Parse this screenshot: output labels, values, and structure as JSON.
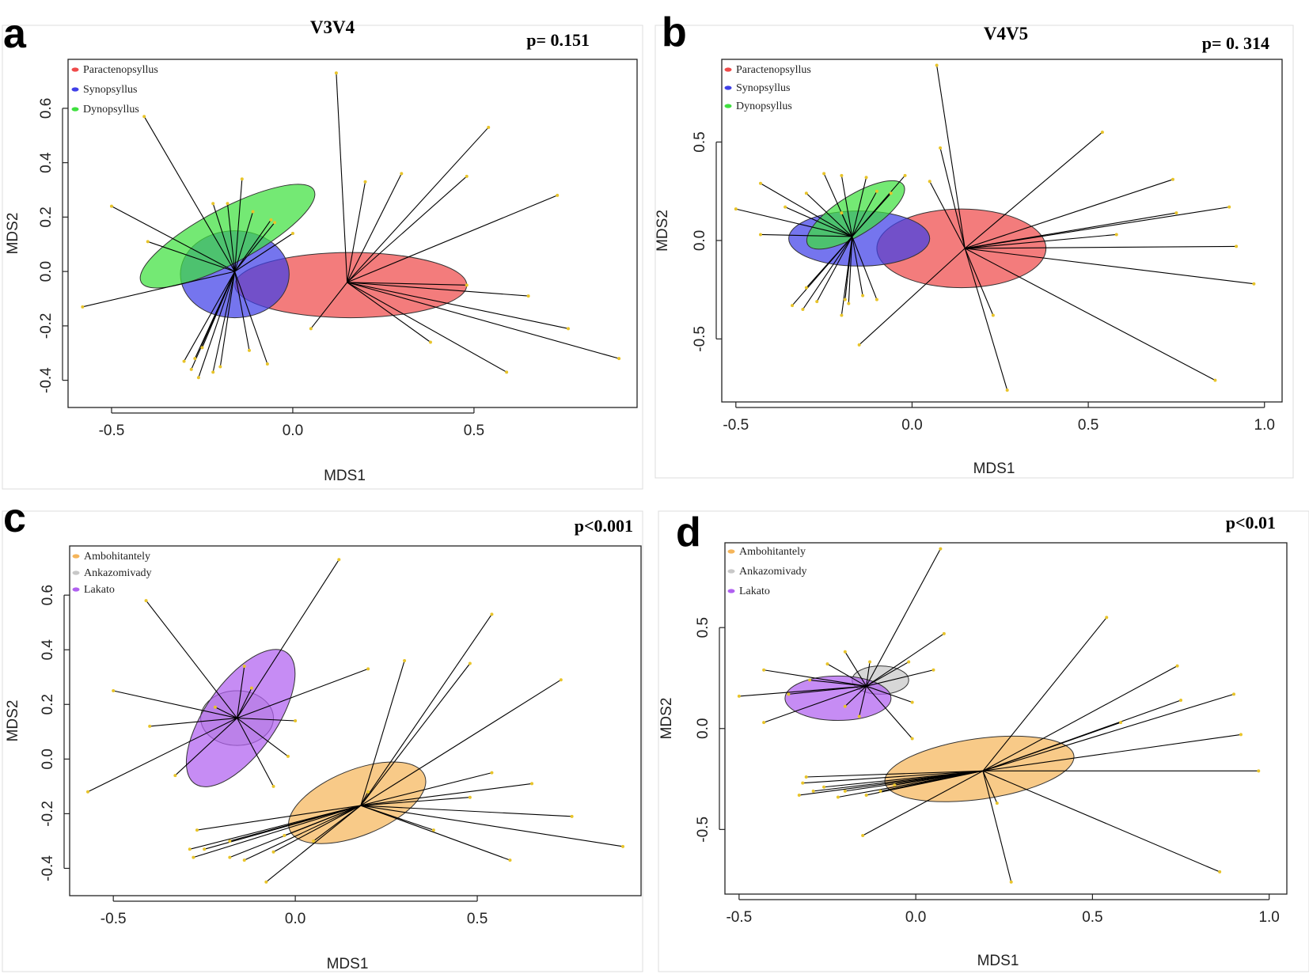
{
  "chart_data": [
    {
      "panel": "a",
      "type": "scatter",
      "title": "V3V4",
      "p_value": "p= 0.151",
      "xlabel": "MDS1",
      "ylabel": "MDS2",
      "xlim": [
        -0.62,
        0.95
      ],
      "ylim": [
        -0.5,
        0.78
      ],
      "xticks": [
        -0.5,
        0.0,
        0.5
      ],
      "xtick_labels": [
        "-0.5",
        "0.0",
        "0.5"
      ],
      "yticks": [
        -0.4,
        -0.2,
        0.0,
        0.2,
        0.4,
        0.6
      ],
      "ytick_labels": [
        "-0.4",
        "-0.2",
        "0.0",
        "0.2",
        "0.4",
        "0.6"
      ],
      "legend": [
        "Paractenopsyllus",
        "Synopsyllus",
        "Dynopsyllus"
      ],
      "groups": [
        {
          "name": "Paractenopsyllus",
          "color": "#ef4a4a",
          "centroid": [
            0.15,
            -0.04
          ],
          "ellipse": {
            "cx": 0.16,
            "cy": -0.05,
            "rx": 0.32,
            "ry": 0.12,
            "angle": 0
          },
          "points": [
            [
              0.2,
              0.33
            ],
            [
              0.3,
              0.36
            ],
            [
              0.48,
              0.35
            ],
            [
              0.54,
              0.53
            ],
            [
              0.73,
              0.28
            ],
            [
              0.48,
              -0.05
            ],
            [
              0.65,
              -0.09
            ],
            [
              0.76,
              -0.21
            ],
            [
              0.9,
              -0.32
            ],
            [
              0.59,
              -0.37
            ],
            [
              0.38,
              -0.26
            ],
            [
              0.05,
              -0.21
            ],
            [
              0.12,
              0.73
            ]
          ]
        },
        {
          "name": "Synopsyllus",
          "color": "#4040e8",
          "centroid": [
            -0.16,
            0.0
          ],
          "ellipse": {
            "cx": -0.16,
            "cy": -0.01,
            "rx": 0.15,
            "ry": 0.16,
            "angle": 0
          },
          "points": [
            [
              -0.58,
              -0.13
            ],
            [
              -0.27,
              -0.32
            ],
            [
              -0.22,
              -0.37
            ],
            [
              -0.12,
              -0.29
            ],
            [
              -0.07,
              -0.34
            ],
            [
              -0.14,
              0.34
            ],
            [
              -0.18,
              0.25
            ],
            [
              -0.26,
              -0.39
            ],
            [
              -0.11,
              0.22
            ],
            [
              -0.05,
              0.18
            ]
          ]
        },
        {
          "name": "Dynopsyllus",
          "color": "#3fe03f",
          "centroid": [
            -0.16,
            0.0
          ],
          "ellipse": {
            "cx": -0.18,
            "cy": 0.13,
            "rx": 0.27,
            "ry": 0.1,
            "angle": -28
          },
          "points": [
            [
              -0.5,
              0.24
            ],
            [
              -0.41,
              0.57
            ],
            [
              -0.4,
              0.11
            ],
            [
              -0.22,
              0.25
            ],
            [
              -0.28,
              -0.36
            ],
            [
              -0.25,
              -0.28
            ],
            [
              -0.2,
              -0.35
            ],
            [
              -0.06,
              0.19
            ],
            [
              -0.0,
              0.14
            ],
            [
              -0.3,
              -0.33
            ]
          ]
        }
      ]
    },
    {
      "panel": "b",
      "type": "scatter",
      "title": "V4V5",
      "p_value": "p= 0. 314",
      "xlabel": "MDS1",
      "ylabel": "MDS2",
      "xlim": [
        -0.54,
        1.05
      ],
      "ylim": [
        -0.82,
        0.92
      ],
      "xticks": [
        -0.5,
        0.0,
        0.5,
        1.0
      ],
      "xtick_labels": [
        "-0.5",
        "0.0",
        "0.5",
        "1.0"
      ],
      "yticks": [
        -0.5,
        0.0,
        0.5
      ],
      "ytick_labels": [
        "-0.5",
        "0.0",
        "0.5"
      ],
      "legend": [
        "Paractenopsyllus",
        "Synopsyllus",
        "Dynopsyllus"
      ],
      "groups": [
        {
          "name": "Paractenopsyllus",
          "color": "#ef4a4a",
          "centroid": [
            0.15,
            -0.04
          ],
          "ellipse": {
            "cx": 0.14,
            "cy": -0.04,
            "rx": 0.24,
            "ry": 0.2,
            "angle": 0
          },
          "points": [
            [
              0.07,
              0.89
            ],
            [
              0.54,
              0.55
            ],
            [
              0.74,
              0.31
            ],
            [
              0.75,
              0.14
            ],
            [
              0.9,
              0.17
            ],
            [
              0.92,
              -0.03
            ],
            [
              0.97,
              -0.22
            ],
            [
              0.86,
              -0.71
            ],
            [
              0.27,
              -0.76
            ],
            [
              0.23,
              -0.38
            ],
            [
              0.58,
              0.03
            ],
            [
              0.05,
              0.3
            ],
            [
              0.08,
              0.47
            ],
            [
              -0.15,
              -0.53
            ]
          ]
        },
        {
          "name": "Synopsyllus",
          "color": "#4040e8",
          "centroid": [
            -0.17,
            0.02
          ],
          "ellipse": {
            "cx": -0.15,
            "cy": 0.01,
            "rx": 0.2,
            "ry": 0.14,
            "angle": 0
          },
          "points": [
            [
              -0.5,
              0.16
            ],
            [
              -0.43,
              0.03
            ],
            [
              -0.3,
              -0.24
            ],
            [
              -0.31,
              -0.35
            ],
            [
              -0.27,
              -0.31
            ],
            [
              -0.19,
              -0.3
            ],
            [
              -0.14,
              -0.28
            ],
            [
              -0.1,
              -0.3
            ],
            [
              -0.34,
              -0.33
            ],
            [
              -0.2,
              -0.38
            ],
            [
              -0.18,
              -0.32
            ]
          ]
        },
        {
          "name": "Dynopsyllus",
          "color": "#3fe03f",
          "centroid": [
            -0.17,
            0.02
          ],
          "ellipse": {
            "cx": -0.16,
            "cy": 0.13,
            "rx": 0.16,
            "ry": 0.1,
            "angle": -32
          },
          "points": [
            [
              -0.43,
              0.29
            ],
            [
              -0.36,
              0.17
            ],
            [
              -0.3,
              0.24
            ],
            [
              -0.2,
              0.33
            ],
            [
              -0.25,
              0.34
            ],
            [
              -0.13,
              0.32
            ],
            [
              -0.06,
              0.24
            ],
            [
              -0.02,
              0.33
            ],
            [
              -0.1,
              0.25
            ],
            [
              -0.2,
              0.14
            ]
          ]
        }
      ]
    },
    {
      "panel": "c",
      "type": "scatter",
      "title": "",
      "p_value": "p<0.001",
      "xlabel": "MDS1",
      "ylabel": "MDS2",
      "xlim": [
        -0.62,
        0.95
      ],
      "ylim": [
        -0.5,
        0.78
      ],
      "xticks": [
        -0.5,
        0.0,
        0.5
      ],
      "xtick_labels": [
        "-0.5",
        "0.0",
        "0.5"
      ],
      "yticks": [
        -0.4,
        -0.2,
        0.0,
        0.2,
        0.4,
        0.6
      ],
      "ytick_labels": [
        "-0.4",
        "-0.2",
        "0.0",
        "0.2",
        "0.4",
        "0.6"
      ],
      "legend": [
        "Ambohitantely",
        "Ankazomivady",
        "Lakato"
      ],
      "groups": [
        {
          "name": "Ambohitantely",
          "color": "#f5b55a",
          "centroid": [
            0.18,
            -0.17
          ],
          "ellipse": {
            "cx": 0.17,
            "cy": -0.16,
            "rx": 0.2,
            "ry": 0.12,
            "angle": -22
          },
          "points": [
            [
              0.3,
              0.36
            ],
            [
              0.48,
              0.35
            ],
            [
              0.54,
              0.53
            ],
            [
              0.73,
              0.29
            ],
            [
              0.54,
              -0.05
            ],
            [
              0.65,
              -0.09
            ],
            [
              0.76,
              -0.21
            ],
            [
              0.9,
              -0.32
            ],
            [
              0.59,
              -0.37
            ],
            [
              0.38,
              -0.26
            ],
            [
              0.48,
              -0.14
            ],
            [
              0.2,
              -0.12
            ],
            [
              -0.08,
              -0.45
            ],
            [
              -0.18,
              -0.3
            ],
            [
              -0.27,
              -0.26
            ],
            [
              -0.28,
              -0.36
            ],
            [
              -0.25,
              -0.33
            ],
            [
              -0.14,
              -0.37
            ],
            [
              -0.06,
              -0.34
            ],
            [
              -0.29,
              -0.33
            ],
            [
              -0.18,
              -0.36
            ],
            [
              -0.03,
              -0.28
            ],
            [
              0.05,
              -0.3
            ]
          ]
        },
        {
          "name": "Ankazomivady",
          "color": "#c8c8c8",
          "centroid": [
            -0.16,
            0.15
          ],
          "ellipse": {
            "cx": -0.16,
            "cy": 0.15,
            "rx": 0.1,
            "ry": 0.1,
            "angle": 0
          },
          "points": []
        },
        {
          "name": "Lakato",
          "color": "#b060f0",
          "centroid": [
            -0.16,
            0.15
          ],
          "ellipse": {
            "cx": -0.15,
            "cy": 0.15,
            "rx": 0.22,
            "ry": 0.13,
            "angle": -55
          },
          "points": [
            [
              -0.57,
              -0.12
            ],
            [
              -0.5,
              0.25
            ],
            [
              -0.41,
              0.58
            ],
            [
              -0.4,
              0.12
            ],
            [
              -0.33,
              -0.06
            ],
            [
              -0.22,
              0.19
            ],
            [
              -0.14,
              0.34
            ],
            [
              -0.12,
              0.26
            ],
            [
              -0.0,
              0.14
            ],
            [
              -0.02,
              0.01
            ],
            [
              -0.06,
              -0.1
            ],
            [
              0.2,
              0.33
            ],
            [
              0.12,
              0.73
            ]
          ]
        }
      ]
    },
    {
      "panel": "d",
      "type": "scatter",
      "title": "",
      "p_value": "p<0.01",
      "xlabel": "MDS1",
      "ylabel": "MDS2",
      "xlim": [
        -0.54,
        1.05
      ],
      "ylim": [
        -0.82,
        0.92
      ],
      "xticks": [
        -0.5,
        0.0,
        0.5,
        1.0
      ],
      "xtick_labels": [
        "-0.5",
        "0.0",
        "0.5",
        "1.0"
      ],
      "yticks": [
        -0.5,
        0.0,
        0.5
      ],
      "ytick_labels": [
        "-0.5",
        "0.0",
        "0.5"
      ],
      "legend": [
        "Ambohitantely",
        "Ankazomivady",
        "Lakato"
      ],
      "groups": [
        {
          "name": "Ambohitantely",
          "color": "#f5b55a",
          "centroid": [
            0.19,
            -0.21
          ],
          "ellipse": {
            "cx": 0.18,
            "cy": -0.2,
            "rx": 0.27,
            "ry": 0.15,
            "angle": -8
          },
          "points": [
            [
              0.54,
              0.55
            ],
            [
              0.74,
              0.31
            ],
            [
              0.75,
              0.14
            ],
            [
              0.9,
              0.17
            ],
            [
              0.92,
              -0.03
            ],
            [
              0.97,
              -0.21
            ],
            [
              0.86,
              -0.71
            ],
            [
              0.27,
              -0.76
            ],
            [
              0.23,
              -0.37
            ],
            [
              0.58,
              0.03
            ],
            [
              -0.15,
              -0.53
            ],
            [
              -0.31,
              -0.24
            ],
            [
              -0.32,
              -0.27
            ],
            [
              -0.33,
              -0.33
            ],
            [
              -0.29,
              -0.31
            ],
            [
              -0.22,
              -0.34
            ],
            [
              -0.2,
              -0.31
            ],
            [
              -0.14,
              -0.33
            ],
            [
              -0.1,
              -0.31
            ],
            [
              -0.06,
              -0.28
            ],
            [
              -0.26,
              -0.29
            ]
          ]
        },
        {
          "name": "Ankazomivady",
          "color": "#c8c8c8",
          "centroid": [
            -0.14,
            0.21
          ],
          "ellipse": {
            "cx": -0.1,
            "cy": 0.24,
            "rx": 0.08,
            "ry": 0.07,
            "angle": 0
          },
          "points": [
            [
              0.07,
              0.89
            ],
            [
              0.08,
              0.47
            ],
            [
              0.05,
              0.29
            ],
            [
              -0.02,
              0.33
            ],
            [
              -0.01,
              0.13
            ],
            [
              -0.01,
              -0.05
            ]
          ]
        },
        {
          "name": "Lakato",
          "color": "#b060f0",
          "centroid": [
            -0.14,
            0.21
          ],
          "ellipse": {
            "cx": -0.22,
            "cy": 0.15,
            "rx": 0.15,
            "ry": 0.11,
            "angle": 0
          },
          "points": [
            [
              -0.5,
              0.16
            ],
            [
              -0.43,
              0.03
            ],
            [
              -0.43,
              0.29
            ],
            [
              -0.36,
              0.17
            ],
            [
              -0.3,
              0.24
            ],
            [
              -0.2,
              0.38
            ],
            [
              -0.25,
              0.32
            ],
            [
              -0.13,
              0.33
            ],
            [
              -0.2,
              0.11
            ],
            [
              -0.16,
              0.06
            ]
          ]
        }
      ]
    }
  ]
}
